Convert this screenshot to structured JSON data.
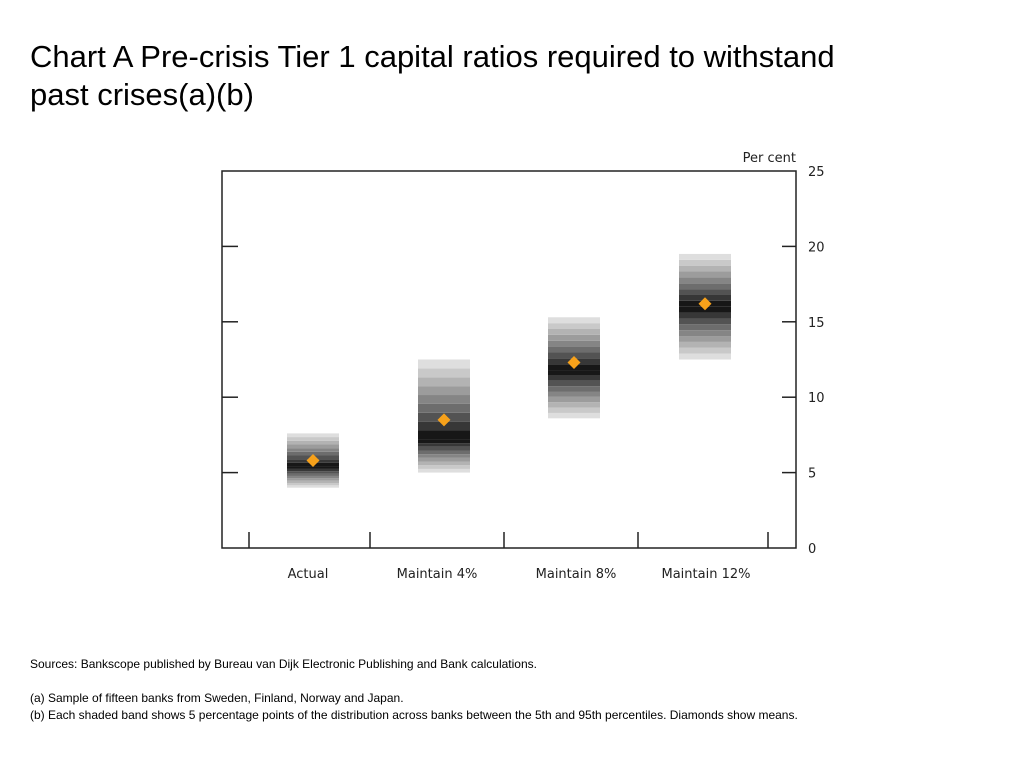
{
  "slide": {
    "title_line1": "Chart A  Pre-crisis Tier 1 capital ratios required to withstand",
    "title_line2": "past crises(a)(b)"
  },
  "chart_data": {
    "type": "band",
    "categories": [
      "Actual",
      "Maintain 4%",
      "Maintain 8%",
      "Maintain 12%"
    ],
    "ylabel": "Per cent",
    "ylim": [
      0,
      25
    ],
    "yticks": [
      0,
      5,
      10,
      15,
      20,
      25
    ],
    "y_axis_side": "right",
    "grid": false,
    "percentiles": [
      {
        "p5": 4.0,
        "p95": 7.6,
        "median": 5.4
      },
      {
        "p5": 5.0,
        "p95": 12.5,
        "median": 7.2
      },
      {
        "p5": 8.6,
        "p95": 15.3,
        "median": 11.8
      },
      {
        "p5": 12.5,
        "p95": 19.5,
        "median": 16.0
      }
    ],
    "means": [
      5.8,
      8.5,
      12.3,
      16.2
    ],
    "mean_marker": "diamond",
    "colors": {
      "mean_marker": "#F7A11A",
      "band_darkest": "#000000",
      "band_lightest": "#E6E6E6",
      "axis": "#222222"
    }
  },
  "notes": {
    "sources": "Sources:  Bankscope published by Bureau van Dijk Electronic Publishing and Bank calculations.",
    "note_a": "(a)  Sample of fifteen banks from Sweden, Finland, Norway and Japan.",
    "note_b": "(b)  Each shaded band shows 5 percentage points of the distribution across banks between the 5th and 95th percentiles. Diamonds show means."
  }
}
